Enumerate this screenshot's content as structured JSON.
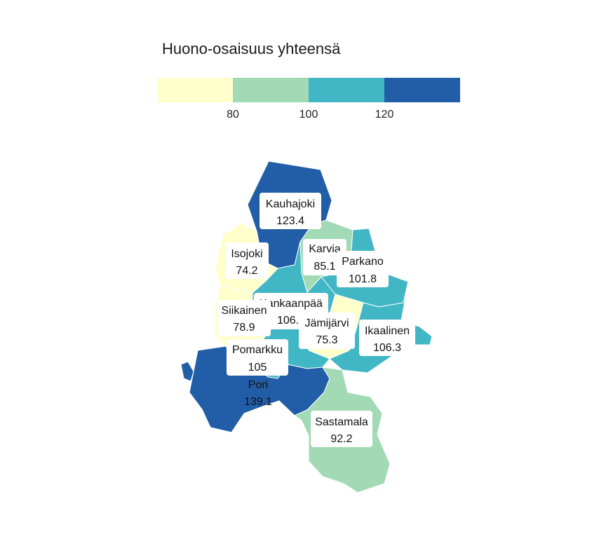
{
  "title": "Huono-osaisuus yhteensä",
  "legend": {
    "colors": [
      "#ffffcc",
      "#a1dab4",
      "#41b6c4",
      "#225ea8"
    ],
    "ticks": [
      80,
      100,
      120
    ],
    "tick_labels": [
      "80",
      "100",
      "120"
    ]
  },
  "regions": [
    {
      "id": "kauhajoki",
      "name": "Kauhajoki",
      "value": "123.4",
      "color": "#225ea8"
    },
    {
      "id": "isojoki",
      "name": "Isojoki",
      "value": "74.2",
      "color": "#ffffcc"
    },
    {
      "id": "karvia",
      "name": "Karvia",
      "value": "85.1",
      "color": "#a1dab4"
    },
    {
      "id": "parkano",
      "name": "Parkano",
      "value": "101.8",
      "color": "#41b6c4"
    },
    {
      "id": "kankaanpaa",
      "name": "Kankaanpää",
      "value": "106.5",
      "color": "#41b6c4"
    },
    {
      "id": "siikainen",
      "name": "Siikainen",
      "value": "78.9",
      "color": "#ffffcc"
    },
    {
      "id": "jamijarvi",
      "name": "Jämijärvi",
      "value": "75.3",
      "color": "#ffffcc"
    },
    {
      "id": "ikaalinen",
      "name": "Ikaalinen",
      "value": "106.3",
      "color": "#41b6c4"
    },
    {
      "id": "pomarkku",
      "name": "Pomarkku",
      "value": "105",
      "color": "#41b6c4"
    },
    {
      "id": "pori",
      "name": "Pori",
      "value": "139.1",
      "color": "#225ea8"
    },
    {
      "id": "sastamala",
      "name": "Sastamala",
      "value": "92.2",
      "color": "#a1dab4"
    }
  ]
}
